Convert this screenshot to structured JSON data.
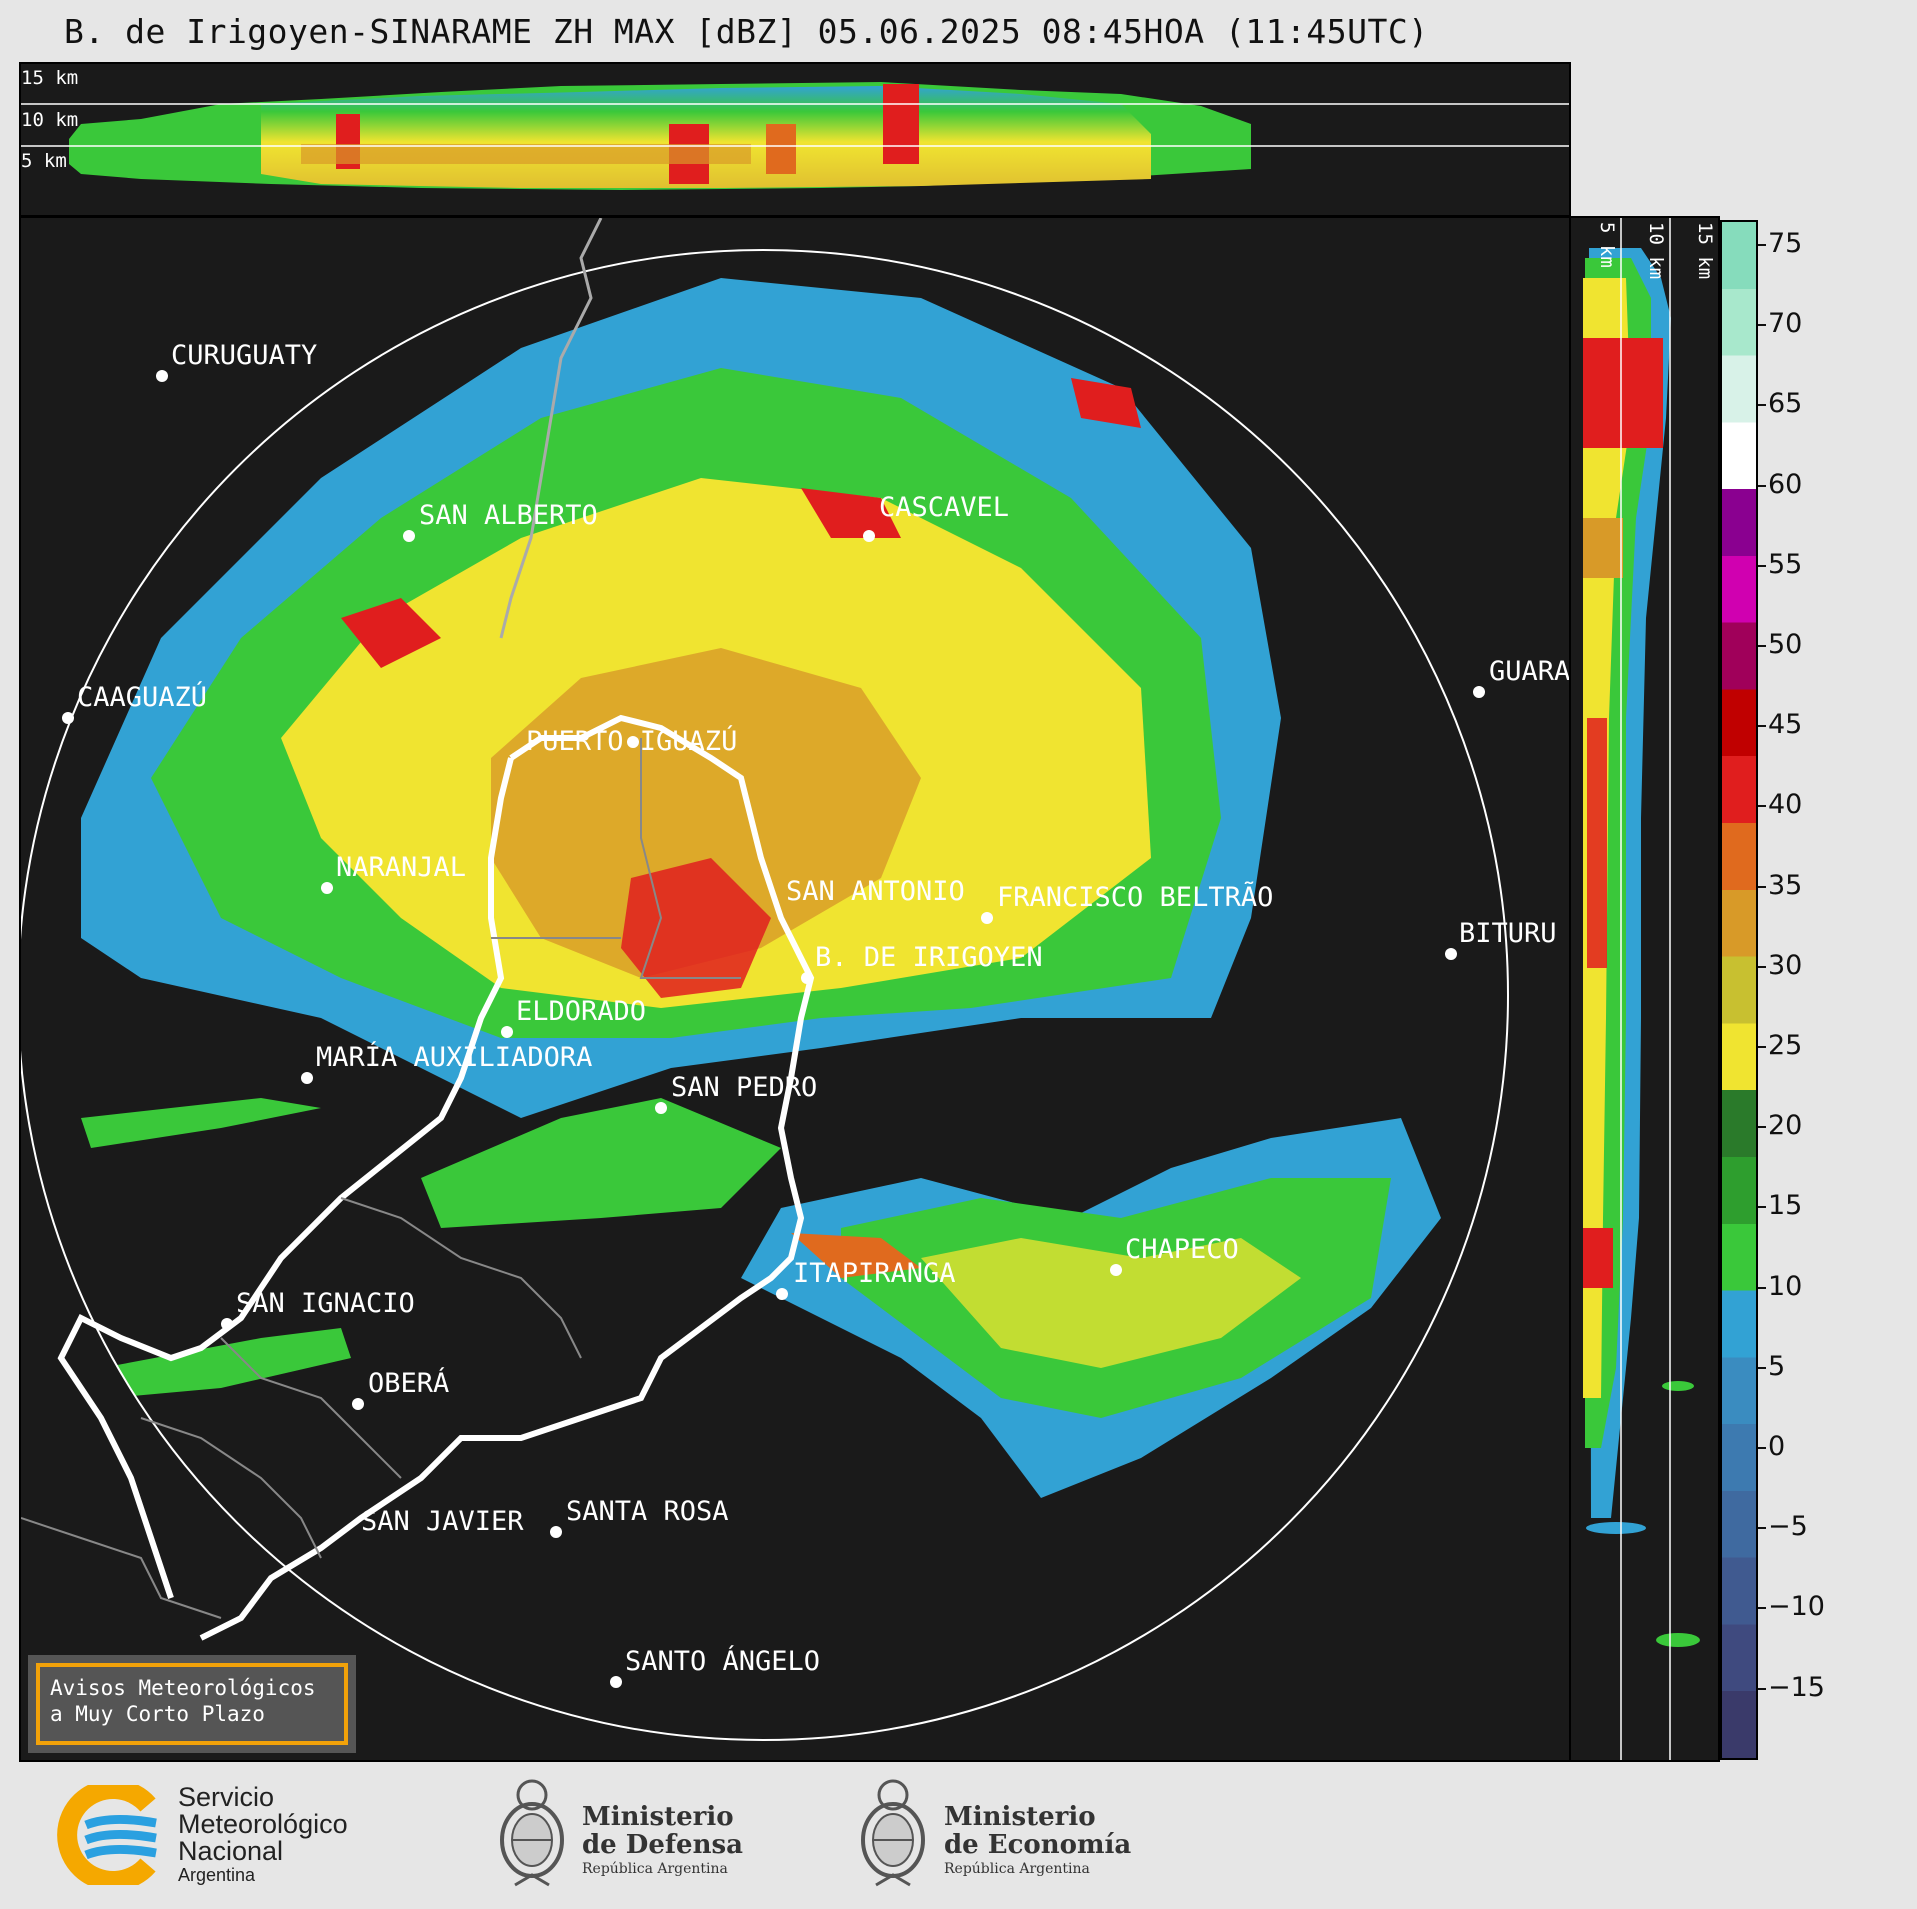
{
  "title": "B. de Irigoyen-SINARAME ZH MAX [dBZ] 05.06.2025 08:45HOA (11:45UTC)",
  "top_panel": {
    "height_labels": [
      "15 km",
      "10 km",
      "5 km"
    ]
  },
  "side_panel": {
    "height_labels": [
      "5 km",
      "10 km",
      "15 km"
    ]
  },
  "colorbar": {
    "unit": "dBZ",
    "ticks": [
      "75",
      "70",
      "65",
      "60",
      "55",
      "50",
      "45",
      "40",
      "35",
      "30",
      "25",
      "20",
      "15",
      "10",
      "5",
      "0",
      "−5",
      "−10",
      "−15"
    ],
    "colors": [
      "#3a3a6a",
      "#3f4a7f",
      "#405a90",
      "#3f6aa0",
      "#3d7ab0",
      "#3a8cc0",
      "#32a2d4",
      "#3ac83a",
      "#2e9e2e",
      "#2a7a2a",
      "#f0e430",
      "#c8c030",
      "#d89a28",
      "#e06a1e",
      "#e01e1e",
      "#c00000",
      "#a0005a",
      "#d000b0",
      "#8a0090",
      "#ffffff",
      "#d8f2e8",
      "#a8e8cc",
      "#86dcbc"
    ]
  },
  "cities": [
    {
      "name": "CURUGUATY"
    },
    {
      "name": "SAN ALBERTO"
    },
    {
      "name": "CASCAVEL"
    },
    {
      "name": "CAAGUAZÚ"
    },
    {
      "name": "GUARA"
    },
    {
      "name": "PUERTO IGUAZÚ"
    },
    {
      "name": "NARANJAL"
    },
    {
      "name": "SAN ANTONIO"
    },
    {
      "name": "FRANCISCO BELTRÃO"
    },
    {
      "name": "BITURU"
    },
    {
      "name": "B. DE IRIGOYEN"
    },
    {
      "name": "ELDORADO"
    },
    {
      "name": "MARÍA AUXILIADORA"
    },
    {
      "name": "SAN PEDRO"
    },
    {
      "name": "CHAPECO"
    },
    {
      "name": "ITAPIRANGA"
    },
    {
      "name": "SAN IGNACIO"
    },
    {
      "name": "OBERÁ"
    },
    {
      "name": "SAN JAVIER"
    },
    {
      "name": "SANTA ROSA"
    },
    {
      "name": "SANTO ÁNGELO"
    }
  ],
  "notice": {
    "line1": "Avisos Meteorológicos",
    "line2": "a Muy Corto Plazo"
  },
  "footer": {
    "smn_line1": "Servicio",
    "smn_line2": "Meteorológico",
    "smn_line3": "Nacional",
    "smn_line4": "Argentina",
    "defensa_line1": "Ministerio",
    "defensa_line2": "de Defensa",
    "defensa_line3": "República Argentina",
    "economia_line1": "Ministerio",
    "economia_line2": "de Economía",
    "economia_line3": "República Argentina"
  }
}
